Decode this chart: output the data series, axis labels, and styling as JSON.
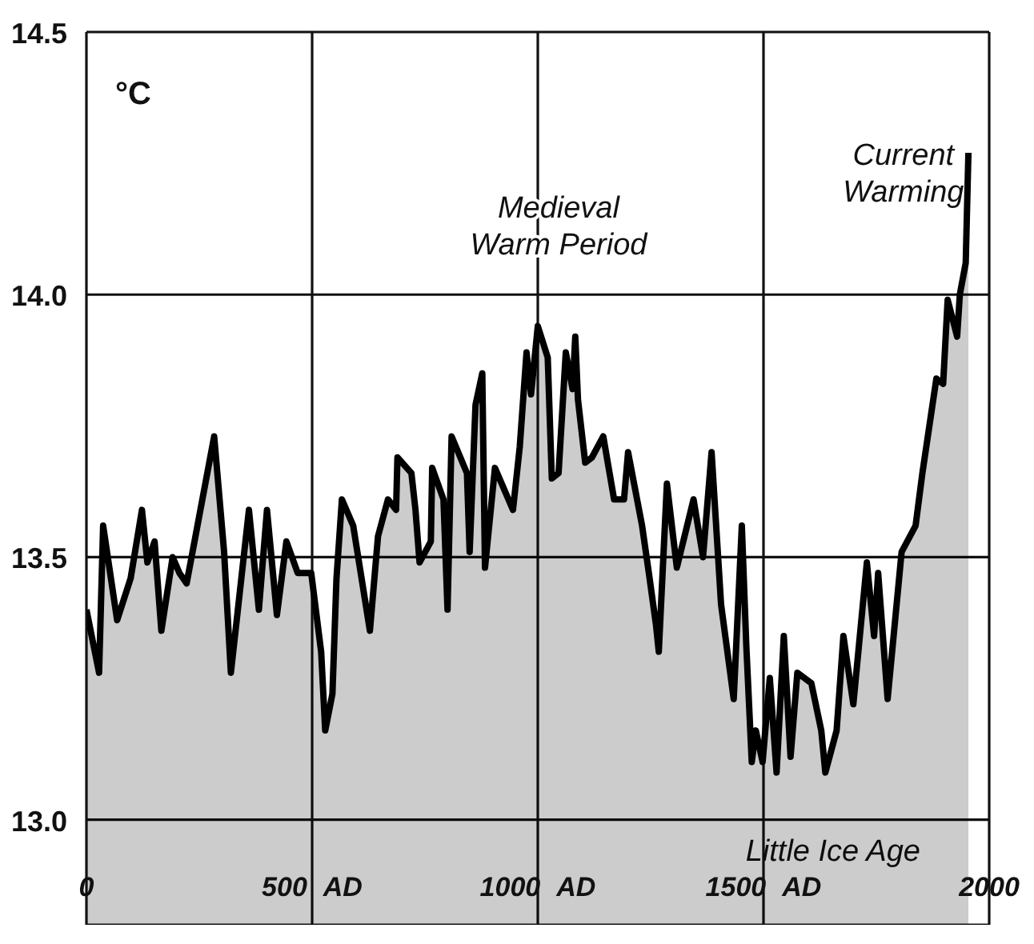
{
  "chart_data": {
    "type": "area",
    "ylabel": "°C",
    "x": [
      0,
      28,
      37,
      68,
      98,
      123,
      135,
      151,
      166,
      191,
      206,
      222,
      246,
      283,
      305,
      320,
      360,
      382,
      400,
      422,
      443,
      468,
      498,
      520,
      529,
      545,
      554,
      566,
      591,
      628,
      646,
      668,
      686,
      689,
      720,
      729,
      738,
      763,
      766,
      791,
      800,
      809,
      843,
      849,
      862,
      877,
      883,
      905,
      945,
      960,
      975,
      985,
      1000,
      1022,
      1031,
      1046,
      1062,
      1077,
      1083,
      1089,
      1105,
      1120,
      1145,
      1169,
      1191,
      1200,
      1231,
      1246,
      1262,
      1268,
      1286,
      1308,
      1345,
      1366,
      1385,
      1406,
      1434,
      1452,
      1462,
      1474,
      1483,
      1498,
      1514,
      1529,
      1545,
      1560,
      1575,
      1606,
      1628,
      1637,
      1662,
      1677,
      1699,
      1729,
      1745,
      1754,
      1775,
      1806,
      1837,
      1852,
      1883,
      1898,
      1908,
      1929,
      1935,
      1948,
      1954
    ],
    "values": [
      13.4,
      13.28,
      13.56,
      13.38,
      13.46,
      13.59,
      13.49,
      13.53,
      13.36,
      13.5,
      13.47,
      13.45,
      13.56,
      13.73,
      13.51,
      13.28,
      13.59,
      13.4,
      13.59,
      13.39,
      13.53,
      13.47,
      13.47,
      13.32,
      13.17,
      13.24,
      13.46,
      13.61,
      13.56,
      13.36,
      13.54,
      13.61,
      13.59,
      13.69,
      13.66,
      13.59,
      13.49,
      13.53,
      13.67,
      13.61,
      13.4,
      13.73,
      13.66,
      13.51,
      13.79,
      13.85,
      13.48,
      13.67,
      13.59,
      13.71,
      13.89,
      13.81,
      13.94,
      13.88,
      13.65,
      13.66,
      13.89,
      13.82,
      13.92,
      13.8,
      13.68,
      13.69,
      13.73,
      13.61,
      13.61,
      13.7,
      13.56,
      13.47,
      13.37,
      13.32,
      13.64,
      13.48,
      13.61,
      13.5,
      13.7,
      13.41,
      13.23,
      13.56,
      13.33,
      13.11,
      13.17,
      13.11,
      13.27,
      13.09,
      13.35,
      13.12,
      13.28,
      13.26,
      13.17,
      13.09,
      13.17,
      13.35,
      13.22,
      13.49,
      13.35,
      13.47,
      13.23,
      13.51,
      13.56,
      13.66,
      13.84,
      13.83,
      13.99,
      13.92,
      14.0,
      14.06,
      14.27
    ],
    "color": "#000000",
    "xlim": [
      0,
      2000
    ],
    "xticks": [
      0,
      {
        "value": 500,
        "label": "500 AD"
      },
      {
        "value": 1000,
        "label": "1000 AD"
      },
      {
        "value": 1500,
        "label": "1500 AD"
      },
      2000
    ],
    "ylim": [
      12.8,
      14.5
    ],
    "yticks": [
      {
        "value": 13,
        "label": "13.0"
      },
      13.5,
      {
        "value": 14,
        "label": "14.0"
      },
      14.5
    ],
    "grid": true,
    "annotations": [
      "Medieval Warm Period",
      "Current Warming",
      "Little Ice Age"
    ]
  }
}
